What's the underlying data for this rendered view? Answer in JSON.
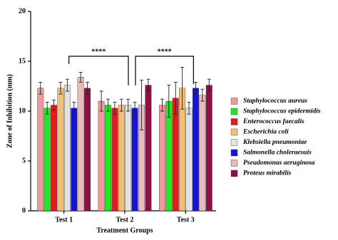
{
  "chart_data": {
    "type": "bar",
    "y_label": "Zone of Inhibition (mm)",
    "x_label": "Treatment Groups",
    "categories": [
      "Test 1",
      "Test 2",
      "Test 3"
    ],
    "ylim": [
      0,
      20
    ],
    "yticks": [
      0,
      5,
      10,
      15,
      20
    ],
    "annotations": [
      "****",
      "****"
    ],
    "series": [
      {
        "name": "Staphylococcus aureus",
        "color": "#ef9a9a",
        "values": [
          12.3,
          11.0,
          10.6
        ],
        "errors": [
          0.6,
          1.0,
          0.6
        ]
      },
      {
        "name": "Staphylococcus epidermidis",
        "color": "#22e622",
        "values": [
          10.3,
          10.6,
          11.0
        ],
        "errors": [
          0.6,
          0.6,
          1.6
        ]
      },
      {
        "name": "Enterococcus faecalis",
        "color": "#e31b1b",
        "values": [
          10.6,
          10.3,
          11.3
        ],
        "errors": [
          0.5,
          0.6,
          1.6
        ]
      },
      {
        "name": "Escherichia coli",
        "color": "#f2bf78",
        "values": [
          12.3,
          10.6,
          12.3
        ],
        "errors": [
          0.6,
          0.6,
          2.1
        ]
      },
      {
        "name": "Klebsiella pneumoniae",
        "color": "#e2e2e2",
        "values": [
          12.6,
          10.6,
          10.3
        ],
        "errors": [
          0.6,
          0.6,
          0.6
        ]
      },
      {
        "name": "Salmonella choleraesuis",
        "color": "#1414d2",
        "values": [
          10.3,
          10.3,
          12.3
        ],
        "errors": [
          0.6,
          0.6,
          0.6
        ]
      },
      {
        "name": "Pseudomonas aeruginosa",
        "color": "#e6bcbc",
        "values": [
          13.4,
          10.6,
          11.6
        ],
        "errors": [
          0.5,
          2.5,
          0.6
        ]
      },
      {
        "name": "Proteus mirabilis",
        "color": "#8c0f45",
        "values": [
          12.3,
          12.6,
          12.6
        ],
        "errors": [
          0.6,
          0.6,
          0.6
        ]
      }
    ]
  }
}
